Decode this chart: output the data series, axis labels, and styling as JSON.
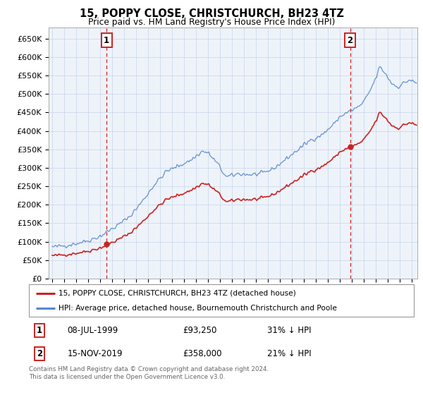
{
  "title": "15, POPPY CLOSE, CHRISTCHURCH, BH23 4TZ",
  "subtitle": "Price paid vs. HM Land Registry's House Price Index (HPI)",
  "legend_line1": "15, POPPY CLOSE, CHRISTCHURCH, BH23 4TZ (detached house)",
  "legend_line2": "HPI: Average price, detached house, Bournemouth Christchurch and Poole",
  "sale1_date": "08-JUL-1999",
  "sale1_price": 93250,
  "sale1_hpi_note": "31% ↓ HPI",
  "sale2_date": "15-NOV-2019",
  "sale2_price": 358000,
  "sale2_hpi_note": "21% ↓ HPI",
  "footer": "Contains HM Land Registry data © Crown copyright and database right 2024.\nThis data is licensed under the Open Government Licence v3.0.",
  "hpi_color": "#5588cc",
  "price_color": "#cc2222",
  "marker_color": "#cc2222",
  "sale1_year": 1999.54,
  "sale2_year": 2019.87,
  "ylim_min": 0,
  "ylim_max": 680000,
  "yticks": [
    0,
    50000,
    100000,
    150000,
    200000,
    250000,
    300000,
    350000,
    400000,
    450000,
    500000,
    550000,
    600000,
    650000
  ],
  "chart_bg": "#eef3fa",
  "fig_bg": "#ffffff"
}
